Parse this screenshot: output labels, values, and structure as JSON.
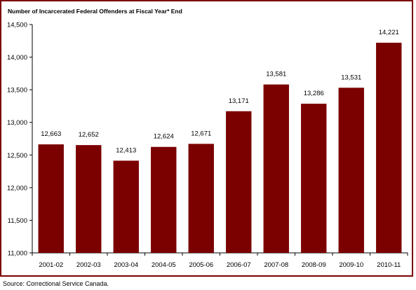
{
  "chart_data": {
    "type": "bar",
    "title": "Number of Incarcerated Federal Offenders at Fiscal Year* End",
    "categories": [
      "2001-02",
      "2002-03",
      "2003-04",
      "2004-05",
      "2005-06",
      "2006-07",
      "2007-08",
      "2008-09",
      "2009-10",
      "2010-11"
    ],
    "values": [
      12663,
      12652,
      12413,
      12624,
      12671,
      13171,
      13581,
      13286,
      13531,
      14221
    ],
    "value_labels": [
      "12,663",
      "12,652",
      "12,413",
      "12,624",
      "12,671",
      "13,171",
      "13,581",
      "13,286",
      "13,531",
      "14,221"
    ],
    "yticks": [
      11000,
      11500,
      12000,
      12500,
      13000,
      13500,
      14000,
      14500
    ],
    "ytick_labels": [
      "11,000",
      "11,500",
      "12,000",
      "12,500",
      "13,000",
      "13,500",
      "14,000",
      "14,500"
    ],
    "ylim": [
      11000,
      14500
    ],
    "xlabel": "",
    "ylabel": "",
    "grid": false,
    "legend": "none",
    "bar_color": "#7b0000"
  },
  "source": "Source: Correctional Service Canada."
}
